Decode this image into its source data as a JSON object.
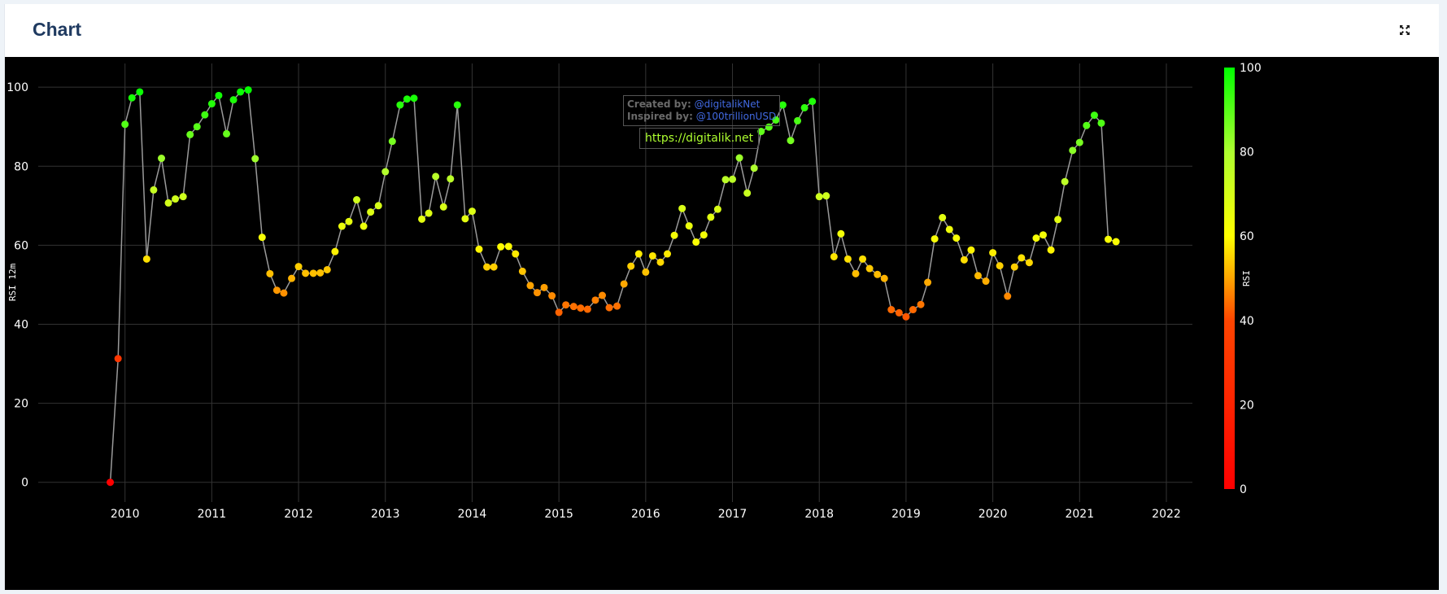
{
  "header": {
    "title": "Chart",
    "expand_icon": "expand-arrows-icon"
  },
  "watermark": {
    "created_label": "Created by:",
    "created_value": "@digitalikNet",
    "inspired_label": "Inspired by:",
    "inspired_value": "@100trillionUSD",
    "url": "https://digitalik.net"
  },
  "colors": {
    "background": "#000000",
    "line": "#9a9a9a",
    "grid": "#333333",
    "colorscale": [
      "#ff0000",
      "#ff4500",
      "#ffa500",
      "#ffff00",
      "#adff2f",
      "#00ff00"
    ],
    "header_title": "#1f3a60"
  },
  "chart_data": {
    "type": "scatter",
    "mode": "lines+markers",
    "title": "",
    "xlabel": "",
    "ylabel": "RSI 12m",
    "xlim": [
      2009.0,
      2022.3
    ],
    "ylim": [
      -5,
      106
    ],
    "x_ticks": [
      2010,
      2011,
      2012,
      2013,
      2014,
      2015,
      2016,
      2017,
      2018,
      2019,
      2020,
      2021,
      2022
    ],
    "y_ticks": [
      0,
      20,
      40,
      60,
      80,
      100
    ],
    "grid": true,
    "colorbar": {
      "title": "RSI",
      "min": 0,
      "max": 100,
      "ticks": [
        0,
        20,
        40,
        60,
        80,
        100
      ]
    },
    "series": [
      {
        "x": [
          2009.83,
          2009.92,
          2010.0,
          2010.08,
          2010.17,
          2010.25,
          2010.33,
          2010.42,
          2010.5,
          2010.58,
          2010.67,
          2010.75,
          2010.83,
          2010.92,
          2011.0,
          2011.08,
          2011.17,
          2011.25,
          2011.33,
          2011.42,
          2011.5,
          2011.58,
          2011.67,
          2011.75,
          2011.83,
          2011.92,
          2012.0,
          2012.08,
          2012.17,
          2012.25,
          2012.33,
          2012.42,
          2012.5,
          2012.58,
          2012.67,
          2012.75,
          2012.83,
          2012.92,
          2013.0,
          2013.08,
          2013.17,
          2013.25,
          2013.33,
          2013.42,
          2013.5,
          2013.58,
          2013.67,
          2013.75,
          2013.83,
          2013.92,
          2014.0,
          2014.08,
          2014.17,
          2014.25,
          2014.33,
          2014.42,
          2014.5,
          2014.58,
          2014.67,
          2014.75,
          2014.83,
          2014.92,
          2015.0,
          2015.08,
          2015.17,
          2015.25,
          2015.33,
          2015.42,
          2015.5,
          2015.58,
          2015.67,
          2015.75,
          2015.83,
          2015.92,
          2016.0,
          2016.08,
          2016.17,
          2016.25,
          2016.33,
          2016.42,
          2016.5,
          2016.58,
          2016.67,
          2016.75,
          2016.83,
          2016.92,
          2017.0,
          2017.08,
          2017.17,
          2017.25,
          2017.33,
          2017.42,
          2017.5,
          2017.58,
          2017.67,
          2017.75,
          2017.83,
          2017.92,
          2018.0,
          2018.08,
          2018.17,
          2018.25,
          2018.33,
          2018.42,
          2018.5,
          2018.58,
          2018.67,
          2018.75,
          2018.83,
          2018.92,
          2019.0,
          2019.08,
          2019.17,
          2019.25,
          2019.33,
          2019.42,
          2019.5,
          2019.58,
          2019.67,
          2019.75,
          2019.83,
          2019.92,
          2020.0,
          2020.08,
          2020.17,
          2020.25,
          2020.33,
          2020.42,
          2020.5,
          2020.58,
          2020.67,
          2020.75,
          2020.83,
          2020.92,
          2021.0,
          2021.08,
          2021.17,
          2021.25,
          2021.33,
          2021.42
        ],
        "y": [
          0.0,
          31.3,
          90.6,
          97.3,
          98.8,
          56.5,
          74.0,
          82.0,
          70.7,
          71.7,
          72.3,
          88.0,
          90.0,
          93.0,
          95.8,
          97.9,
          88.2,
          96.8,
          98.8,
          99.3,
          81.9,
          62.0,
          52.8,
          48.6,
          47.9,
          51.6,
          54.6,
          52.9,
          52.9,
          53.0,
          53.8,
          58.4,
          64.8,
          66.0,
          71.5,
          64.8,
          68.4,
          70.0,
          78.6,
          86.3,
          95.5,
          97.0,
          97.2,
          66.6,
          68.1,
          77.4,
          69.7,
          76.8,
          95.5,
          66.7,
          68.6,
          59.0,
          54.5,
          54.5,
          59.6,
          59.7,
          57.8,
          53.4,
          49.8,
          48.0,
          49.3,
          47.2,
          43.0,
          44.9,
          44.5,
          44.1,
          43.8,
          46.1,
          47.3,
          44.2,
          44.6,
          50.2,
          54.7,
          57.8,
          53.2,
          57.3,
          55.7,
          57.8,
          62.5,
          69.3,
          64.9,
          60.8,
          62.6,
          67.1,
          69.1,
          76.6,
          76.7,
          82.1,
          73.2,
          79.5,
          88.8,
          89.9,
          91.7,
          95.5,
          86.5,
          91.5,
          94.8,
          96.4,
          72.3,
          72.5,
          57.1,
          62.9,
          56.5,
          52.8,
          56.5,
          54.1,
          52.6,
          51.6,
          43.7,
          42.9,
          41.9,
          43.7,
          45.0,
          50.6,
          61.6,
          67.0,
          64.0,
          61.8,
          56.3,
          58.8,
          52.3,
          50.9,
          58.1,
          54.8,
          47.1,
          54.5,
          56.8,
          55.6,
          61.8,
          62.6,
          58.8,
          66.5,
          76.1,
          84.0,
          86.0,
          90.3,
          92.9,
          90.9,
          61.5,
          60.9
        ]
      }
    ]
  }
}
